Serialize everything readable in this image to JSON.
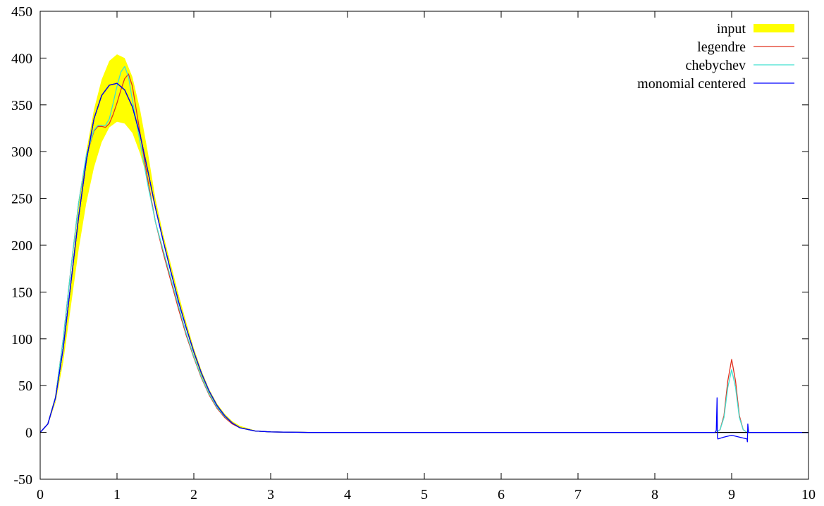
{
  "chart_data": {
    "type": "line",
    "title": "",
    "xlabel": "",
    "ylabel": "",
    "xlim": [
      0,
      10
    ],
    "ylim": [
      -50,
      450
    ],
    "x_ticks": [
      "0",
      "1",
      "2",
      "3",
      "4",
      "5",
      "6",
      "7",
      "8",
      "9",
      "10"
    ],
    "y_ticks": [
      "-50",
      "0",
      "50",
      "100",
      "150",
      "200",
      "250",
      "300",
      "350",
      "400",
      "450"
    ],
    "grid": false,
    "legend_position": "top-right",
    "colors": {
      "input": "#ffff00",
      "legendre": "#e0301e",
      "chebychev": "#40e0d0",
      "monomial_centered": "#0000ff",
      "extra_black_curve": "#000000"
    },
    "series": [
      {
        "name": "input",
        "kind": "band",
        "lower": [
          [
            0,
            0
          ],
          [
            0.1,
            8
          ],
          [
            0.2,
            32
          ],
          [
            0.3,
            75
          ],
          [
            0.4,
            135
          ],
          [
            0.5,
            195
          ],
          [
            0.6,
            245
          ],
          [
            0.7,
            283
          ],
          [
            0.8,
            310
          ],
          [
            0.9,
            326
          ],
          [
            1.0,
            332
          ],
          [
            1.1,
            330
          ],
          [
            1.2,
            320
          ],
          [
            1.3,
            298
          ],
          [
            1.4,
            270
          ],
          [
            1.5,
            238
          ],
          [
            1.6,
            205
          ],
          [
            1.7,
            172
          ],
          [
            1.8,
            140
          ],
          [
            1.9,
            110
          ],
          [
            2.0,
            83
          ],
          [
            2.1,
            60
          ],
          [
            2.2,
            41
          ],
          [
            2.3,
            26
          ],
          [
            2.4,
            16
          ],
          [
            2.5,
            9
          ],
          [
            2.6,
            5
          ],
          [
            2.8,
            1
          ],
          [
            3.0,
            0.3
          ],
          [
            3.5,
            0
          ],
          [
            10,
            0
          ]
        ],
        "upper": [
          [
            0,
            0
          ],
          [
            0.1,
            8
          ],
          [
            0.2,
            34
          ],
          [
            0.3,
            85
          ],
          [
            0.4,
            165
          ],
          [
            0.5,
            240
          ],
          [
            0.6,
            300
          ],
          [
            0.7,
            345
          ],
          [
            0.8,
            377
          ],
          [
            0.9,
            397
          ],
          [
            1.0,
            404
          ],
          [
            1.1,
            400
          ],
          [
            1.2,
            380
          ],
          [
            1.3,
            345
          ],
          [
            1.4,
            300
          ],
          [
            1.5,
            250
          ],
          [
            1.6,
            212
          ],
          [
            1.7,
            180
          ],
          [
            1.8,
            148
          ],
          [
            1.9,
            118
          ],
          [
            2.0,
            90
          ],
          [
            2.1,
            66
          ],
          [
            2.2,
            46
          ],
          [
            2.3,
            31
          ],
          [
            2.4,
            20
          ],
          [
            2.5,
            12
          ],
          [
            2.6,
            7
          ],
          [
            2.8,
            2
          ],
          [
            3.0,
            0.5
          ],
          [
            3.5,
            0
          ],
          [
            10,
            0
          ]
        ]
      },
      {
        "name": "legendre",
        "points": [
          [
            0,
            0
          ],
          [
            0.1,
            9
          ],
          [
            0.2,
            38
          ],
          [
            0.3,
            100
          ],
          [
            0.4,
            175
          ],
          [
            0.5,
            245
          ],
          [
            0.6,
            295
          ],
          [
            0.7,
            322
          ],
          [
            0.75,
            327
          ],
          [
            0.8,
            327
          ],
          [
            0.85,
            326
          ],
          [
            0.9,
            330
          ],
          [
            0.95,
            340
          ],
          [
            1.0,
            352
          ],
          [
            1.05,
            366
          ],
          [
            1.1,
            378
          ],
          [
            1.15,
            383
          ],
          [
            1.2,
            370
          ],
          [
            1.3,
            320
          ],
          [
            1.4,
            270
          ],
          [
            1.5,
            225
          ],
          [
            1.6,
            192
          ],
          [
            1.7,
            162
          ],
          [
            1.8,
            132
          ],
          [
            1.9,
            104
          ],
          [
            2.0,
            80
          ],
          [
            2.1,
            58
          ],
          [
            2.2,
            40
          ],
          [
            2.3,
            26
          ],
          [
            2.4,
            16
          ],
          [
            2.5,
            9
          ],
          [
            2.6,
            5
          ],
          [
            2.8,
            1.5
          ],
          [
            3.0,
            0.5
          ],
          [
            3.5,
            0
          ],
          [
            8.8,
            0
          ],
          [
            8.85,
            3
          ],
          [
            8.9,
            18
          ],
          [
            8.95,
            55
          ],
          [
            9.0,
            78
          ],
          [
            9.05,
            55
          ],
          [
            9.1,
            18
          ],
          [
            9.15,
            3
          ],
          [
            9.2,
            0
          ],
          [
            10,
            0
          ]
        ]
      },
      {
        "name": "chebychev",
        "points": [
          [
            0,
            0
          ],
          [
            0.1,
            9
          ],
          [
            0.2,
            38
          ],
          [
            0.3,
            100
          ],
          [
            0.4,
            175
          ],
          [
            0.5,
            245
          ],
          [
            0.6,
            296
          ],
          [
            0.7,
            323
          ],
          [
            0.75,
            328
          ],
          [
            0.8,
            328
          ],
          [
            0.85,
            328
          ],
          [
            0.9,
            335
          ],
          [
            0.95,
            352
          ],
          [
            1.0,
            370
          ],
          [
            1.05,
            385
          ],
          [
            1.1,
            391
          ],
          [
            1.15,
            380
          ],
          [
            1.2,
            355
          ],
          [
            1.3,
            310
          ],
          [
            1.4,
            265
          ],
          [
            1.5,
            225
          ],
          [
            1.6,
            195
          ],
          [
            1.7,
            165
          ],
          [
            1.8,
            135
          ],
          [
            1.9,
            106
          ],
          [
            2.0,
            81
          ],
          [
            2.1,
            59
          ],
          [
            2.2,
            41
          ],
          [
            2.3,
            27
          ],
          [
            2.4,
            17
          ],
          [
            2.5,
            10
          ],
          [
            2.6,
            5
          ],
          [
            2.8,
            1.5
          ],
          [
            3.0,
            0.5
          ],
          [
            3.5,
            0
          ],
          [
            8.8,
            0
          ],
          [
            8.85,
            3
          ],
          [
            8.9,
            16
          ],
          [
            8.95,
            48
          ],
          [
            9.0,
            67
          ],
          [
            9.05,
            48
          ],
          [
            9.1,
            16
          ],
          [
            9.15,
            3
          ],
          [
            9.2,
            0
          ],
          [
            10,
            0
          ]
        ]
      },
      {
        "name": "",
        "kind": "unlabeled",
        "points": [
          [
            0,
            0
          ],
          [
            0.1,
            9
          ],
          [
            0.2,
            37
          ],
          [
            0.3,
            90
          ],
          [
            0.4,
            160
          ],
          [
            0.5,
            230
          ],
          [
            0.6,
            290
          ],
          [
            0.7,
            335
          ],
          [
            0.8,
            360
          ],
          [
            0.9,
            371
          ],
          [
            1.0,
            373
          ],
          [
            1.1,
            366
          ],
          [
            1.2,
            348
          ],
          [
            1.3,
            318
          ],
          [
            1.4,
            280
          ],
          [
            1.5,
            240
          ],
          [
            1.6,
            205
          ],
          [
            1.7,
            172
          ],
          [
            1.8,
            140
          ],
          [
            1.9,
            112
          ],
          [
            2.0,
            86
          ],
          [
            2.1,
            63
          ],
          [
            2.2,
            44
          ],
          [
            2.3,
            29
          ],
          [
            2.4,
            18
          ],
          [
            2.5,
            10
          ],
          [
            2.6,
            5
          ],
          [
            2.8,
            1.5
          ],
          [
            3.0,
            0.5
          ],
          [
            3.5,
            0
          ],
          [
            10,
            0
          ]
        ]
      },
      {
        "name": "monomial centered",
        "points": [
          [
            0,
            0
          ],
          [
            0.1,
            9
          ],
          [
            0.2,
            37
          ],
          [
            0.3,
            90
          ],
          [
            0.4,
            160
          ],
          [
            0.5,
            230
          ],
          [
            0.6,
            290
          ],
          [
            0.7,
            335
          ],
          [
            0.8,
            360
          ],
          [
            0.9,
            371
          ],
          [
            1.0,
            373
          ],
          [
            1.1,
            366
          ],
          [
            1.2,
            348
          ],
          [
            1.3,
            318
          ],
          [
            1.4,
            280
          ],
          [
            1.5,
            240
          ],
          [
            1.6,
            205
          ],
          [
            1.7,
            172
          ],
          [
            1.8,
            140
          ],
          [
            1.9,
            112
          ],
          [
            2.0,
            86
          ],
          [
            2.1,
            63
          ],
          [
            2.2,
            44
          ],
          [
            2.3,
            29
          ],
          [
            2.4,
            18
          ],
          [
            2.5,
            10
          ],
          [
            2.6,
            5
          ],
          [
            2.8,
            1.5
          ],
          [
            3.0,
            0.5
          ],
          [
            3.5,
            0
          ],
          [
            8.78,
            0
          ],
          [
            8.8,
            2
          ],
          [
            8.81,
            37
          ],
          [
            8.815,
            -5
          ],
          [
            8.82,
            -7
          ],
          [
            8.9,
            -5
          ],
          [
            9.0,
            -3
          ],
          [
            9.1,
            -5
          ],
          [
            9.2,
            -7
          ],
          [
            9.205,
            -10
          ],
          [
            9.21,
            9
          ],
          [
            9.22,
            0
          ],
          [
            10,
            0
          ]
        ]
      }
    ]
  }
}
